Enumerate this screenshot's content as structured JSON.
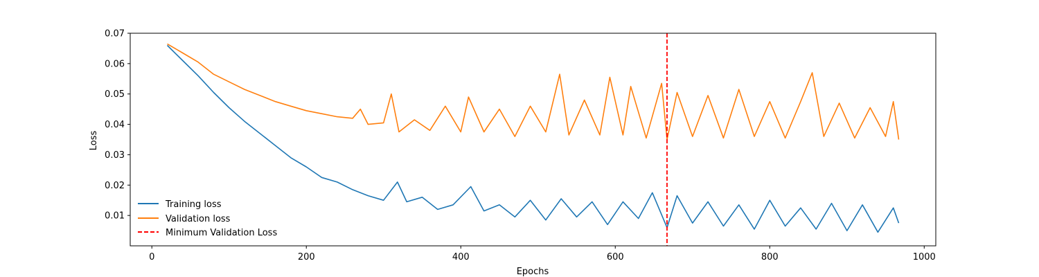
{
  "chart_data": {
    "type": "line",
    "title": "",
    "xlabel": "Epochs",
    "ylabel": "Loss",
    "xlim": [
      -28,
      1015
    ],
    "ylim": [
      0.0,
      0.07
    ],
    "x_ticks": [
      0,
      200,
      400,
      600,
      800,
      1000
    ],
    "x_tick_labels": [
      "0",
      "200",
      "400",
      "600",
      "800",
      "1000"
    ],
    "y_ticks": [
      0.01,
      0.02,
      0.03,
      0.04,
      0.05,
      0.06,
      0.07
    ],
    "y_tick_labels": [
      "0.01",
      "0.02",
      "0.03",
      "0.04",
      "0.05",
      "0.06",
      "0.07"
    ],
    "grid": false,
    "legend_position": "lower-left",
    "vline": {
      "label": "Minimum Validation Loss",
      "x": 667,
      "color": "#ff0000",
      "style": "dashed"
    },
    "series": [
      {
        "name": "Training loss",
        "color": "#1f77b4",
        "x": [
          20,
          40,
          60,
          80,
          100,
          120,
          140,
          160,
          180,
          200,
          220,
          240,
          260,
          280,
          300,
          318,
          330,
          350,
          370,
          390,
          413,
          430,
          450,
          470,
          490,
          510,
          530,
          550,
          570,
          590,
          610,
          630,
          648,
          667,
          680,
          700,
          720,
          740,
          760,
          780,
          800,
          820,
          840,
          860,
          880,
          900,
          920,
          940,
          960,
          967
        ],
        "y": [
          0.066,
          0.061,
          0.056,
          0.0505,
          0.0455,
          0.041,
          0.037,
          0.033,
          0.029,
          0.026,
          0.0225,
          0.021,
          0.0185,
          0.0165,
          0.015,
          0.021,
          0.0145,
          0.016,
          0.012,
          0.0135,
          0.0195,
          0.0115,
          0.0135,
          0.0095,
          0.015,
          0.0085,
          0.0155,
          0.0095,
          0.0145,
          0.007,
          0.0145,
          0.009,
          0.0175,
          0.006,
          0.0165,
          0.0075,
          0.0145,
          0.0065,
          0.0135,
          0.0055,
          0.015,
          0.0065,
          0.0125,
          0.0055,
          0.014,
          0.005,
          0.0135,
          0.0045,
          0.0125,
          0.0075
        ]
      },
      {
        "name": "Validation loss",
        "color": "#ff7f0e",
        "x": [
          20,
          40,
          60,
          80,
          100,
          120,
          140,
          160,
          180,
          200,
          220,
          240,
          260,
          270,
          280,
          300,
          310,
          320,
          340,
          360,
          380,
          400,
          410,
          430,
          450,
          470,
          490,
          510,
          528,
          540,
          560,
          580,
          593,
          610,
          620,
          640,
          660,
          667,
          680,
          700,
          720,
          740,
          760,
          780,
          800,
          820,
          840,
          855,
          870,
          890,
          910,
          930,
          950,
          960,
          967
        ],
        "y": [
          0.0665,
          0.0635,
          0.0605,
          0.0565,
          0.054,
          0.0515,
          0.0495,
          0.0475,
          0.046,
          0.0445,
          0.0435,
          0.0425,
          0.042,
          0.045,
          0.04,
          0.0405,
          0.05,
          0.0375,
          0.0415,
          0.038,
          0.046,
          0.0375,
          0.049,
          0.0375,
          0.045,
          0.036,
          0.046,
          0.0375,
          0.0565,
          0.0365,
          0.048,
          0.0365,
          0.0555,
          0.0365,
          0.0525,
          0.0355,
          0.0535,
          0.035,
          0.0505,
          0.036,
          0.0495,
          0.0355,
          0.0515,
          0.036,
          0.0475,
          0.0355,
          0.0475,
          0.057,
          0.036,
          0.047,
          0.0355,
          0.0455,
          0.036,
          0.0475,
          0.035
        ]
      }
    ]
  }
}
